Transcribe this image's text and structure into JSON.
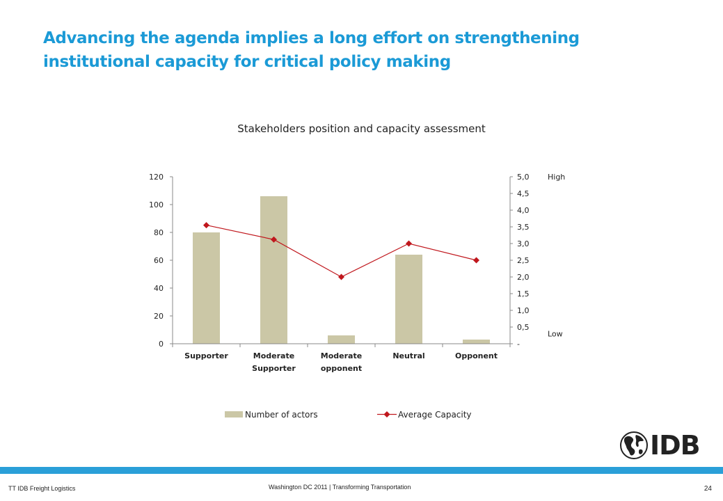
{
  "slide": {
    "title": "Advancing the agenda implies a long effort on strengthening institutional capacity for critical policy making"
  },
  "chart_data": {
    "type": "bar",
    "title": "Stakeholders position and capacity assessment",
    "categories": [
      [
        "Supporter"
      ],
      [
        "Moderate",
        "Supporter"
      ],
      [
        "Moderate",
        "opponent"
      ],
      [
        "Neutral"
      ],
      [
        "Opponent"
      ]
    ],
    "series": [
      {
        "name": "Number of actors",
        "kind": "bar",
        "axis": "left",
        "values": [
          80,
          106,
          6,
          64,
          3
        ],
        "color": "#cbc7a6"
      },
      {
        "name": "Average Capacity",
        "kind": "line",
        "axis": "right",
        "values": [
          3.55,
          3.12,
          2.0,
          3.0,
          2.5
        ],
        "color": "#c0171d"
      }
    ],
    "y_left": {
      "min": 0,
      "max": 120,
      "ticks": [
        0,
        20,
        40,
        60,
        80,
        100,
        120
      ]
    },
    "y_right": {
      "min": 0,
      "max": 5,
      "ticks": [
        0,
        0.5,
        1,
        1.5,
        2,
        2.5,
        3,
        3.5,
        4,
        4.5,
        5
      ],
      "tick_labels": [
        "-",
        "0,5",
        "1,0",
        "1,5",
        "2,0",
        "2,5",
        "3,0",
        "3,5",
        "4,0",
        "4,5",
        "5,0"
      ]
    },
    "right_annotations": {
      "high": "High",
      "low": "Low"
    },
    "legend_placement": "bottom",
    "grid": false
  },
  "footer": {
    "left": "TT IDB Freight Logistics",
    "center": "Washington DC 2011 | Transforming Transportation",
    "page": "24"
  },
  "logo": {
    "text": "IDB",
    "icon": "globe-icon"
  }
}
